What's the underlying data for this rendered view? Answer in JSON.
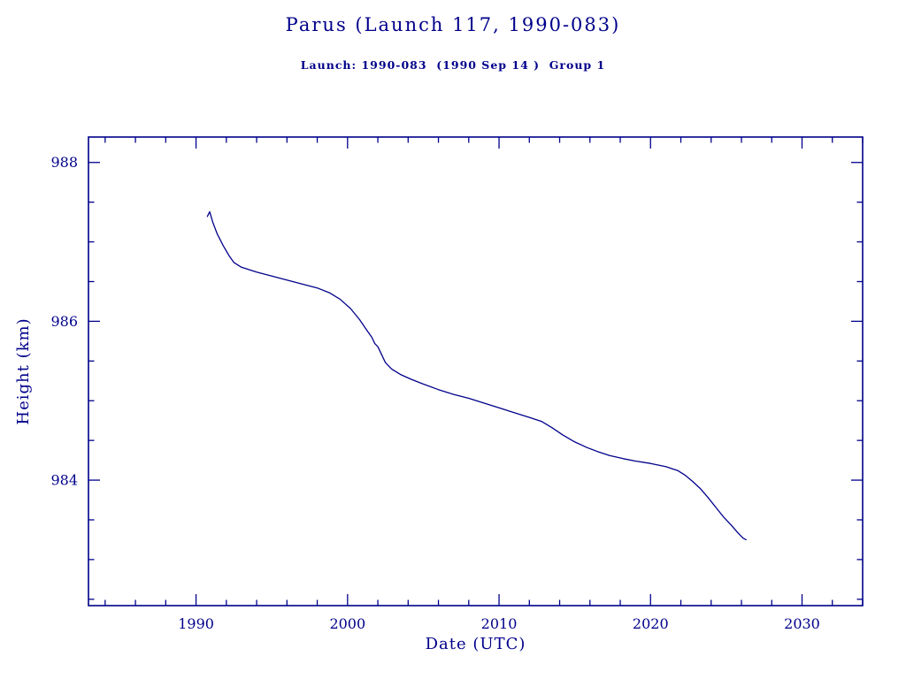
{
  "page": {
    "background": "#ffffff",
    "accent_color": "#00008B"
  },
  "chart_data": {
    "type": "line",
    "title": "Parus (Launch 117, 1990-083)",
    "subtitle": "Launch: 1990-083  (1990 Sep 14 )  Group 1",
    "xlabel": "Date (UTC)",
    "ylabel": "Height (km)",
    "xlim": [
      1982.9,
      2034.0
    ],
    "ylim": [
      982.42,
      988.32
    ],
    "xticks": [
      1990,
      2000,
      2010,
      2020,
      2030
    ],
    "yticks": [
      984,
      986,
      988
    ],
    "x_minor_step": 2,
    "y_minor_step": 0.5,
    "grid": false,
    "legend": "none",
    "line_color": "#00008B",
    "series": [
      {
        "name": "height_km",
        "x": [
          1990.75,
          1990.9,
          1991.1,
          1991.4,
          1991.8,
          1992.2,
          1992.5,
          1993.0,
          1994.0,
          1995.0,
          1996.0,
          1997.0,
          1998.0,
          1998.8,
          1999.5,
          2000.2,
          2000.8,
          2001.3,
          2001.6,
          2001.8,
          2002.0,
          2002.2,
          2002.5,
          2002.9,
          2003.5,
          2004.2,
          2005.0,
          2006.0,
          2007.0,
          2008.0,
          2009.0,
          2010.0,
          2011.0,
          2012.0,
          2012.8,
          2013.5,
          2014.2,
          2015.0,
          2015.8,
          2016.5,
          2017.3,
          2018.2,
          2019.0,
          2020.0,
          2021.0,
          2021.8,
          2022.3,
          2022.8,
          2023.3,
          2023.8,
          2024.3,
          2024.8,
          2025.3,
          2025.8,
          2026.1,
          2026.3
        ],
        "y": [
          987.32,
          987.38,
          987.25,
          987.1,
          986.95,
          986.82,
          986.74,
          986.68,
          986.62,
          986.57,
          986.52,
          986.47,
          986.42,
          986.36,
          986.28,
          986.16,
          986.02,
          985.88,
          985.8,
          985.72,
          985.68,
          985.6,
          985.48,
          985.4,
          985.33,
          985.27,
          985.21,
          985.14,
          985.08,
          985.03,
          984.97,
          984.91,
          984.85,
          984.79,
          984.74,
          984.66,
          984.57,
          984.48,
          984.41,
          984.36,
          984.31,
          984.27,
          984.24,
          984.21,
          984.17,
          984.12,
          984.06,
          983.98,
          983.89,
          983.78,
          983.66,
          983.54,
          983.44,
          983.33,
          983.27,
          983.25
        ]
      }
    ]
  }
}
